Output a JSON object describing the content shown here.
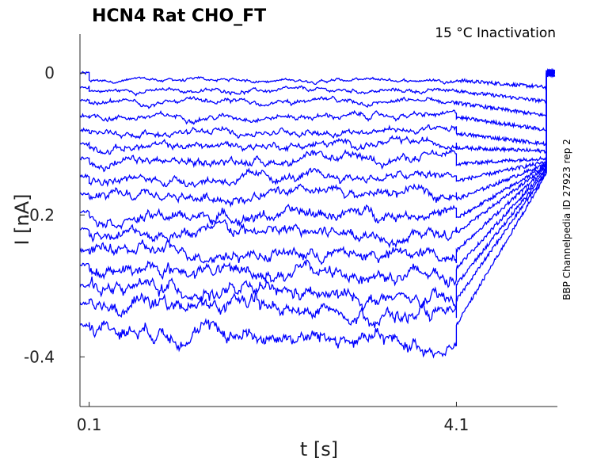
{
  "chart_data": {
    "type": "line",
    "title": "HCN4  Rat  CHO_FT",
    "subtitle": "15 °C  Inactivation",
    "side_note": "BBP Channelpedia ID 27923 rep 2",
    "xlabel": "t [s]",
    "ylabel": "I [nA]",
    "x_ticks": [
      0.1,
      4.1
    ],
    "x_tick_labels": [
      "0.1",
      "4.1"
    ],
    "y_ticks": [
      0,
      -0.2,
      -0.4
    ],
    "y_tick_labels": [
      "0",
      "-0.2",
      "-0.4"
    ],
    "xlim": [
      0.0,
      5.2
    ],
    "ylim": [
      -0.47,
      0.055
    ],
    "grid": false,
    "color": "#0000ff",
    "step_start": 0.1,
    "step_end": 4.1,
    "series_levels": [
      {
        "prepulse": 0.0,
        "start": -0.01,
        "end": -0.01,
        "tail": -0.02
      },
      {
        "prepulse": -0.02,
        "start": -0.025,
        "end": -0.025,
        "tail": -0.04
      },
      {
        "prepulse": -0.038,
        "start": -0.042,
        "end": -0.04,
        "tail": -0.06
      },
      {
        "prepulse": -0.06,
        "start": -0.062,
        "end": -0.06,
        "tail": -0.08
      },
      {
        "prepulse": -0.08,
        "start": -0.085,
        "end": -0.08,
        "tail": -0.1
      },
      {
        "prepulse": -0.1,
        "start": -0.105,
        "end": -0.098,
        "tail": -0.11
      },
      {
        "prepulse": -0.12,
        "start": -0.128,
        "end": -0.118,
        "tail": -0.12
      },
      {
        "prepulse": -0.145,
        "start": -0.152,
        "end": -0.145,
        "tail": -0.125
      },
      {
        "prepulse": -0.17,
        "start": -0.178,
        "end": -0.168,
        "tail": -0.128
      },
      {
        "prepulse": -0.195,
        "start": -0.205,
        "end": -0.195,
        "tail": -0.13
      },
      {
        "prepulse": -0.22,
        "start": -0.225,
        "end": -0.225,
        "tail": -0.132
      },
      {
        "prepulse": -0.25,
        "start": -0.25,
        "end": -0.258,
        "tail": -0.134
      },
      {
        "prepulse": -0.27,
        "start": -0.275,
        "end": -0.285,
        "tail": -0.136
      },
      {
        "prepulse": -0.3,
        "start": -0.298,
        "end": -0.325,
        "tail": -0.138
      },
      {
        "prepulse": -0.325,
        "start": -0.32,
        "end": -0.345,
        "tail": -0.14
      },
      {
        "prepulse": -0.355,
        "start": -0.355,
        "end": -0.385,
        "tail": -0.142
      }
    ]
  }
}
